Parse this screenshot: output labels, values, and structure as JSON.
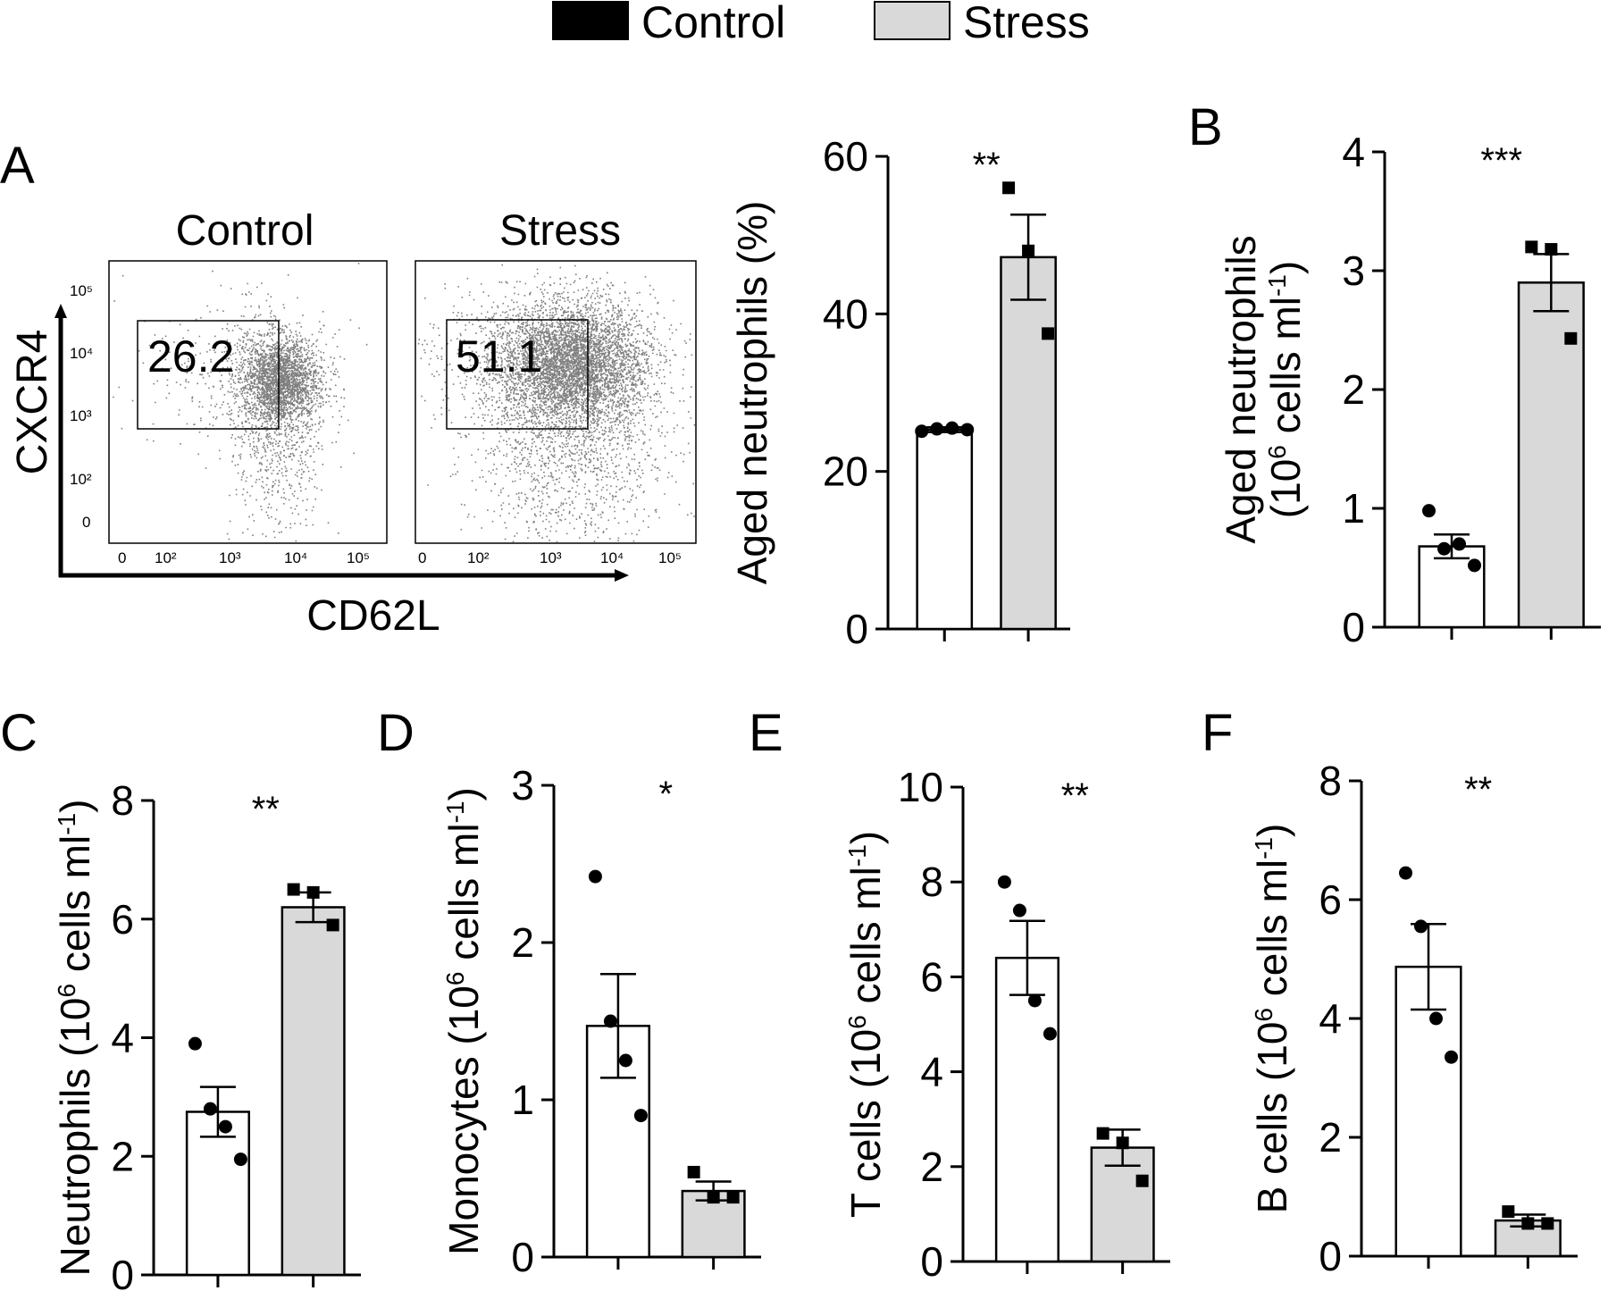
{
  "legend": {
    "items": [
      {
        "label": "Control",
        "color": "#000000"
      },
      {
        "label": "Stress",
        "color": "#d9d9d9"
      }
    ]
  },
  "facs": {
    "panel_letter": "A",
    "x_label": "CD62L",
    "y_label": "CXCR4",
    "x_ticks": [
      "0",
      "10²",
      "10³",
      "10⁴",
      "10⁵"
    ],
    "y_ticks": [
      "10⁵",
      "10⁴",
      "10³",
      "10²",
      "0"
    ],
    "plots": [
      {
        "title": "Control",
        "gate_value": "26.2"
      },
      {
        "title": "Stress",
        "gate_value": "51.1"
      }
    ]
  },
  "chart_data": [
    {
      "id": "A_pct",
      "letter": "",
      "type": "bar",
      "ylabel": "Aged neutrophils (%)",
      "ylabel_lines": [
        "Aged neutrophils (%)"
      ],
      "ylim": [
        0,
        60
      ],
      "yticks": [
        0,
        20,
        40,
        60
      ],
      "ytick_labels": [
        "0",
        "20",
        "40",
        "60"
      ],
      "significance": "**",
      "series": [
        {
          "name": "Control",
          "mean": 25.3,
          "sem": 0.3,
          "points": [
            25.1,
            25.4,
            25.5,
            25.3
          ]
        },
        {
          "name": "Stress",
          "mean": 47.2,
          "sem": 5.4,
          "points": [
            56.0,
            48.0,
            37.5
          ]
        }
      ]
    },
    {
      "id": "B",
      "letter": "B",
      "type": "bar",
      "ylabel": "Aged neutrophils (10^6 cells ml^-1)",
      "ylabel_lines": [
        "Aged neutrophils",
        "(10^6 cells ml^-1)"
      ],
      "ylim": [
        0,
        4
      ],
      "yticks": [
        0,
        1,
        2,
        3,
        4
      ],
      "ytick_labels": [
        "0",
        "1",
        "2",
        "3",
        "4"
      ],
      "significance": "***",
      "series": [
        {
          "name": "Control",
          "mean": 0.68,
          "sem": 0.1,
          "points": [
            0.98,
            0.66,
            0.7,
            0.52
          ]
        },
        {
          "name": "Stress",
          "mean": 2.9,
          "sem": 0.24,
          "points": [
            3.2,
            3.18,
            2.43
          ]
        }
      ]
    },
    {
      "id": "C",
      "letter": "C",
      "type": "bar",
      "ylabel": "Neutrophils (10^6 cells ml^-1)",
      "ylabel_lines": [
        "Neutrophils (10^6 cells ml^-1)"
      ],
      "ylim": [
        0,
        8
      ],
      "yticks": [
        0,
        2,
        4,
        6,
        8
      ],
      "ytick_labels": [
        "0",
        "2",
        "4",
        "6",
        "8"
      ],
      "significance": "**",
      "series": [
        {
          "name": "Control",
          "mean": 2.75,
          "sem": 0.42,
          "points": [
            3.9,
            2.8,
            2.5,
            1.95
          ]
        },
        {
          "name": "Stress",
          "mean": 6.2,
          "sem": 0.25,
          "points": [
            6.5,
            6.45,
            5.9
          ]
        }
      ]
    },
    {
      "id": "D",
      "letter": "D",
      "type": "bar",
      "ylabel": "Monocytes (10^6 cells ml^-1)",
      "ylabel_lines": [
        "Monocytes (10^6 cells ml^-1)"
      ],
      "ylim": [
        0,
        3
      ],
      "yticks": [
        0,
        1,
        2,
        3
      ],
      "ytick_labels": [
        "0",
        "1",
        "2",
        "3"
      ],
      "significance": "*",
      "series": [
        {
          "name": "Control",
          "mean": 1.47,
          "sem": 0.33,
          "points": [
            2.42,
            1.5,
            1.25,
            0.9
          ]
        },
        {
          "name": "Stress",
          "mean": 0.42,
          "sem": 0.06,
          "points": [
            0.54,
            0.38,
            0.38
          ]
        }
      ]
    },
    {
      "id": "E",
      "letter": "E",
      "type": "bar",
      "ylabel": "T cells (10^6 cells ml^-1)",
      "ylabel_lines": [
        "T cells (10^6 cells ml^-1)"
      ],
      "ylim": [
        0,
        10
      ],
      "yticks": [
        0,
        2,
        4,
        6,
        8,
        10
      ],
      "ytick_labels": [
        "0",
        "2",
        "4",
        "6",
        "8",
        "10"
      ],
      "significance": "**",
      "series": [
        {
          "name": "Control",
          "mean": 6.4,
          "sem": 0.78,
          "points": [
            8.0,
            7.4,
            5.5,
            4.8
          ]
        },
        {
          "name": "Stress",
          "mean": 2.4,
          "sem": 0.38,
          "points": [
            2.7,
            2.5,
            1.7
          ]
        }
      ]
    },
    {
      "id": "F",
      "letter": "F",
      "type": "bar",
      "ylabel": "B cells (10^6 cells ml^-1)",
      "ylabel_lines": [
        "B cells (10^6 cells ml^-1)"
      ],
      "ylim": [
        0,
        8
      ],
      "yticks": [
        0,
        2,
        4,
        6,
        8
      ],
      "ytick_labels": [
        "0",
        "2",
        "4",
        "6",
        "8"
      ],
      "significance": "**",
      "series": [
        {
          "name": "Control",
          "mean": 4.87,
          "sem": 0.72,
          "points": [
            6.45,
            5.55,
            4.0,
            3.35
          ]
        },
        {
          "name": "Stress",
          "mean": 0.6,
          "sem": 0.1,
          "points": [
            0.75,
            0.55,
            0.55
          ]
        }
      ]
    }
  ]
}
